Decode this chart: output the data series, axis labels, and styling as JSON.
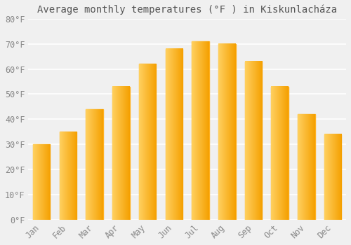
{
  "months": [
    "Jan",
    "Feb",
    "Mar",
    "Apr",
    "May",
    "Jun",
    "Jul",
    "Aug",
    "Sep",
    "Oct",
    "Nov",
    "Dec"
  ],
  "values": [
    30,
    35,
    44,
    53,
    62,
    68,
    71,
    70,
    63,
    53,
    42,
    34
  ],
  "bar_color_main": "#FFA500",
  "bar_color_light": "#FFC84A",
  "title": "Average monthly temperatures (°F ) in Kiskunlacháza",
  "ylim": [
    0,
    80
  ],
  "yticks": [
    0,
    10,
    20,
    30,
    40,
    50,
    60,
    70,
    80
  ],
  "ytick_labels": [
    "0°F",
    "10°F",
    "20°F",
    "30°F",
    "40°F",
    "50°F",
    "60°F",
    "70°F",
    "80°F"
  ],
  "background_color": "#f0f0f0",
  "plot_bg_color": "#f0f0f0",
  "grid_color": "#ffffff",
  "title_fontsize": 10,
  "tick_fontsize": 8.5,
  "title_color": "#555555",
  "tick_color": "#888888"
}
